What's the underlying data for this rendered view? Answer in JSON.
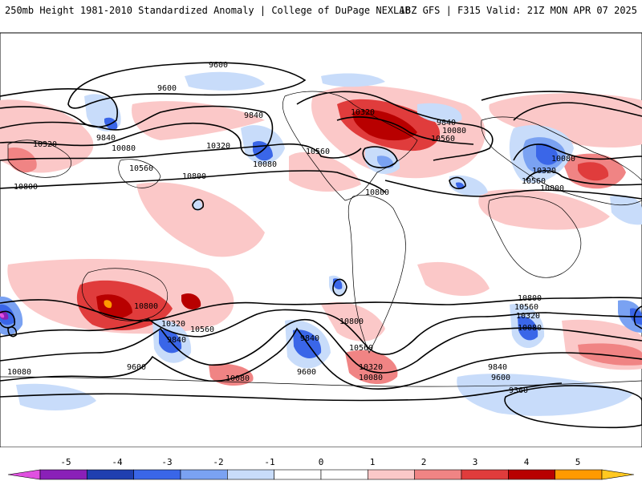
{
  "header": {
    "left_title": "250mb Height 1981-2010 Standardized Anomaly | College of DuPage NEXLAB",
    "right_title": "18Z GFS | F315 Valid: 21Z MON APR 07 2025"
  },
  "map": {
    "contour_labels": [
      {
        "id": "n-9600-a",
        "text": "9600"
      },
      {
        "id": "n-9600-b",
        "text": "9600"
      },
      {
        "id": "n-9840-a",
        "text": "9840"
      },
      {
        "id": "n-9840-b",
        "text": "9840"
      },
      {
        "id": "n-9840-c",
        "text": "9840"
      },
      {
        "id": "n-10080-a",
        "text": "10080"
      },
      {
        "id": "n-10080-b",
        "text": "10080"
      },
      {
        "id": "n-10080-c",
        "text": "10080"
      },
      {
        "id": "n-10080-d",
        "text": "10080"
      },
      {
        "id": "n-10320-a",
        "text": "10320"
      },
      {
        "id": "n-10320-b",
        "text": "10320"
      },
      {
        "id": "n-10320-c",
        "text": "10320"
      },
      {
        "id": "n-10320-d",
        "text": "10320"
      },
      {
        "id": "n-10560-a",
        "text": "10560"
      },
      {
        "id": "n-10560-b",
        "text": "10560"
      },
      {
        "id": "n-10560-c",
        "text": "10560"
      },
      {
        "id": "n-10560-d",
        "text": "10560"
      },
      {
        "id": "n-10800-a",
        "text": "10800"
      },
      {
        "id": "n-10800-b",
        "text": "10800"
      },
      {
        "id": "n-10800-c",
        "text": "10800"
      },
      {
        "id": "n-10800-d",
        "text": "10800"
      },
      {
        "id": "s-10800-a",
        "text": "10800"
      },
      {
        "id": "s-10800-b",
        "text": "10800"
      },
      {
        "id": "s-10800-c",
        "text": "10800"
      },
      {
        "id": "s-10560-a",
        "text": "10560"
      },
      {
        "id": "s-10560-b",
        "text": "10560"
      },
      {
        "id": "s-10560-c",
        "text": "10560"
      },
      {
        "id": "s-10320-a",
        "text": "10320"
      },
      {
        "id": "s-10320-b",
        "text": "10320"
      },
      {
        "id": "s-10320-c",
        "text": "10320"
      },
      {
        "id": "s-10080-a",
        "text": "10080"
      },
      {
        "id": "s-10080-b",
        "text": "10080"
      },
      {
        "id": "s-10080-c",
        "text": "10080"
      },
      {
        "id": "s-10080-d",
        "text": "10080"
      },
      {
        "id": "s-9840-a",
        "text": "9840"
      },
      {
        "id": "s-9840-b",
        "text": "9840"
      },
      {
        "id": "s-9840-c",
        "text": "9840"
      },
      {
        "id": "s-9600-a",
        "text": "9600"
      },
      {
        "id": "s-9600-b",
        "text": "9600"
      },
      {
        "id": "s-9600-c",
        "text": "9600"
      },
      {
        "id": "s-9360-a",
        "text": "9360"
      }
    ]
  },
  "legend": {
    "labels": [
      "-5",
      "-4",
      "-3",
      "-2",
      "-1",
      "0",
      "1",
      "2",
      "3",
      "4",
      "5"
    ],
    "colors": [
      "#e050e0",
      "#8a20b8",
      "#1f3fb0",
      "#3a66e8",
      "#7aa2f2",
      "#c8dcfa",
      "#ffffff",
      "#ffffff",
      "#fbc8c8",
      "#f08484",
      "#e03c3c",
      "#b80000",
      "#ff9a00",
      "#ffc820"
    ]
  }
}
